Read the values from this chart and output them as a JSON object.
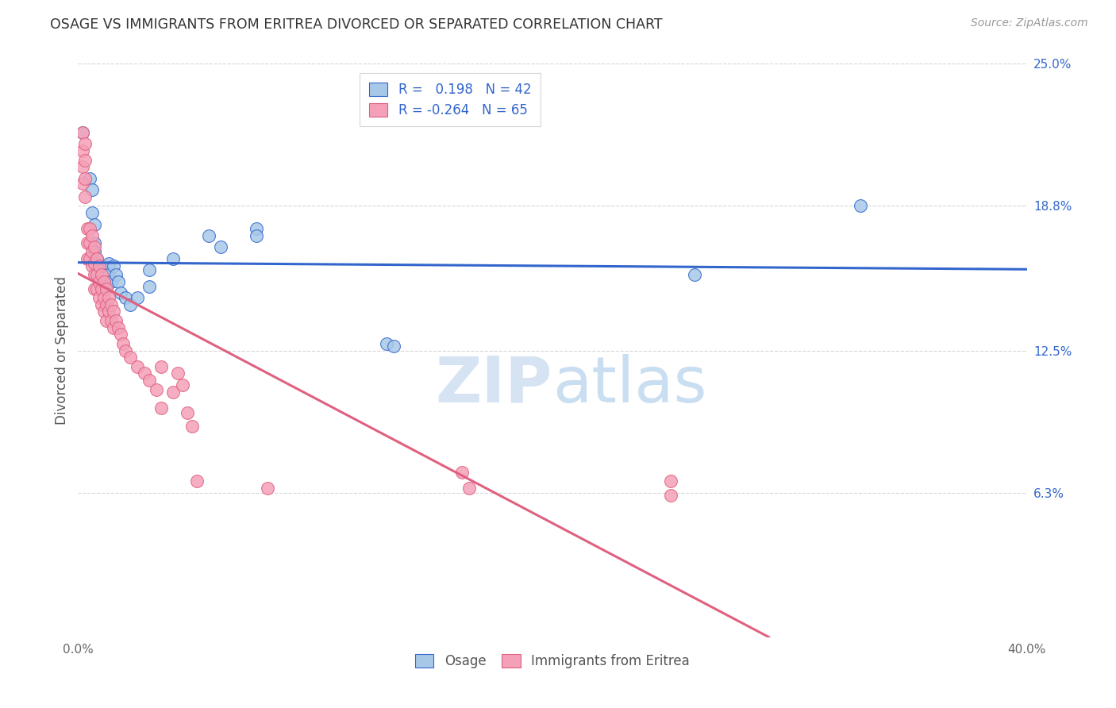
{
  "title": "OSAGE VS IMMIGRANTS FROM ERITREA DIVORCED OR SEPARATED CORRELATION CHART",
  "source": "Source: ZipAtlas.com",
  "ylabel": "Divorced or Separated",
  "xlim": [
    0.0,
    0.4
  ],
  "ylim": [
    0.0,
    0.25
  ],
  "xtick_vals": [
    0.0,
    0.1,
    0.2,
    0.3,
    0.4
  ],
  "xticklabels": [
    "0.0%",
    "",
    "",
    "",
    "40.0%"
  ],
  "ytick_right_labels": [
    "25.0%",
    "18.8%",
    "12.5%",
    "6.3%",
    ""
  ],
  "ytick_right_values": [
    0.25,
    0.188,
    0.125,
    0.063,
    0.0
  ],
  "color_osage": "#a8c8e8",
  "color_eritrea": "#f4a0b8",
  "line_color_osage": "#3366cc",
  "line_color_eritrea": "#e06080",
  "background_color": "#ffffff",
  "grid_color": "#cccccc",
  "osage_points": [
    [
      0.002,
      0.22
    ],
    [
      0.005,
      0.2
    ],
    [
      0.006,
      0.195
    ],
    [
      0.006,
      0.185
    ],
    [
      0.007,
      0.18
    ],
    [
      0.007,
      0.172
    ],
    [
      0.007,
      0.168
    ],
    [
      0.008,
      0.165
    ],
    [
      0.008,
      0.162
    ],
    [
      0.008,
      0.158
    ],
    [
      0.009,
      0.162
    ],
    [
      0.009,
      0.158
    ],
    [
      0.009,
      0.155
    ],
    [
      0.01,
      0.16
    ],
    [
      0.01,
      0.155
    ],
    [
      0.01,
      0.152
    ],
    [
      0.011,
      0.162
    ],
    [
      0.011,
      0.158
    ],
    [
      0.011,
      0.152
    ],
    [
      0.012,
      0.158
    ],
    [
      0.012,
      0.153
    ],
    [
      0.013,
      0.163
    ],
    [
      0.013,
      0.158
    ],
    [
      0.014,
      0.155
    ],
    [
      0.015,
      0.162
    ],
    [
      0.016,
      0.158
    ],
    [
      0.017,
      0.155
    ],
    [
      0.018,
      0.15
    ],
    [
      0.02,
      0.148
    ],
    [
      0.022,
      0.145
    ],
    [
      0.025,
      0.148
    ],
    [
      0.03,
      0.16
    ],
    [
      0.03,
      0.153
    ],
    [
      0.04,
      0.165
    ],
    [
      0.055,
      0.175
    ],
    [
      0.06,
      0.17
    ],
    [
      0.075,
      0.178
    ],
    [
      0.075,
      0.175
    ],
    [
      0.13,
      0.128
    ],
    [
      0.133,
      0.127
    ],
    [
      0.26,
      0.158
    ],
    [
      0.33,
      0.188
    ]
  ],
  "eritrea_points": [
    [
      0.002,
      0.22
    ],
    [
      0.002,
      0.212
    ],
    [
      0.002,
      0.205
    ],
    [
      0.002,
      0.198
    ],
    [
      0.003,
      0.215
    ],
    [
      0.003,
      0.208
    ],
    [
      0.003,
      0.2
    ],
    [
      0.003,
      0.192
    ],
    [
      0.004,
      0.178
    ],
    [
      0.004,
      0.172
    ],
    [
      0.004,
      0.165
    ],
    [
      0.005,
      0.178
    ],
    [
      0.005,
      0.172
    ],
    [
      0.005,
      0.165
    ],
    [
      0.006,
      0.175
    ],
    [
      0.006,
      0.168
    ],
    [
      0.006,
      0.162
    ],
    [
      0.007,
      0.17
    ],
    [
      0.007,
      0.163
    ],
    [
      0.007,
      0.158
    ],
    [
      0.007,
      0.152
    ],
    [
      0.008,
      0.165
    ],
    [
      0.008,
      0.158
    ],
    [
      0.008,
      0.152
    ],
    [
      0.009,
      0.162
    ],
    [
      0.009,
      0.155
    ],
    [
      0.009,
      0.148
    ],
    [
      0.01,
      0.158
    ],
    [
      0.01,
      0.152
    ],
    [
      0.01,
      0.145
    ],
    [
      0.011,
      0.155
    ],
    [
      0.011,
      0.148
    ],
    [
      0.011,
      0.142
    ],
    [
      0.012,
      0.152
    ],
    [
      0.012,
      0.145
    ],
    [
      0.012,
      0.138
    ],
    [
      0.013,
      0.148
    ],
    [
      0.013,
      0.142
    ],
    [
      0.014,
      0.145
    ],
    [
      0.014,
      0.138
    ],
    [
      0.015,
      0.142
    ],
    [
      0.015,
      0.135
    ],
    [
      0.016,
      0.138
    ],
    [
      0.017,
      0.135
    ],
    [
      0.018,
      0.132
    ],
    [
      0.019,
      0.128
    ],
    [
      0.02,
      0.125
    ],
    [
      0.022,
      0.122
    ],
    [
      0.025,
      0.118
    ],
    [
      0.028,
      0.115
    ],
    [
      0.03,
      0.112
    ],
    [
      0.033,
      0.108
    ],
    [
      0.035,
      0.118
    ],
    [
      0.035,
      0.1
    ],
    [
      0.04,
      0.107
    ],
    [
      0.042,
      0.115
    ],
    [
      0.044,
      0.11
    ],
    [
      0.046,
      0.098
    ],
    [
      0.048,
      0.092
    ],
    [
      0.05,
      0.068
    ],
    [
      0.08,
      0.065
    ],
    [
      0.162,
      0.072
    ],
    [
      0.165,
      0.065
    ],
    [
      0.25,
      0.068
    ],
    [
      0.25,
      0.062
    ]
  ]
}
